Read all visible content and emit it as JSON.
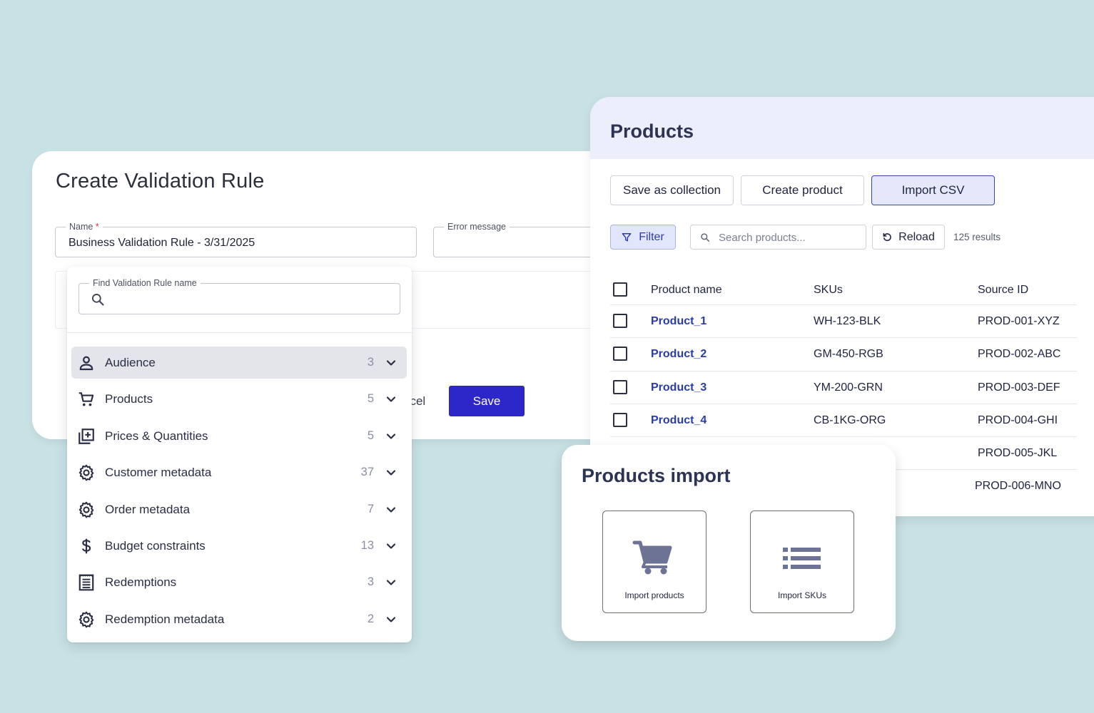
{
  "rule_form": {
    "title": "Create Validation Rule",
    "name_label": "Name",
    "name_required_mark": "*",
    "name_value": "Business Validation Rule - 3/31/2025",
    "error_label": "Error message",
    "cancel_label": "ncel",
    "save_label": "Save"
  },
  "dropdown": {
    "search_label": "Find Validation Rule name",
    "items": [
      {
        "label": "Audience",
        "count": "3",
        "icon": "person-icon",
        "active": true
      },
      {
        "label": "Products",
        "count": "5",
        "icon": "cart-icon",
        "active": false
      },
      {
        "label": "Prices & Quantities",
        "count": "5",
        "icon": "add-box-icon",
        "active": false
      },
      {
        "label": "Customer metadata",
        "count": "37",
        "icon": "gear-icon",
        "active": false
      },
      {
        "label": "Order metadata",
        "count": "7",
        "icon": "gear-icon",
        "active": false
      },
      {
        "label": "Budget constraints",
        "count": "13",
        "icon": "dollar-icon",
        "active": false
      },
      {
        "label": "Redemptions",
        "count": "3",
        "icon": "receipt-icon",
        "active": false
      },
      {
        "label": "Redemption metadata",
        "count": "2",
        "icon": "gear-icon",
        "active": false
      }
    ]
  },
  "products": {
    "title": "Products",
    "buttons": {
      "save_collection": "Save as collection",
      "create_product": "Create product",
      "import_csv": "Import CSV"
    },
    "filter_label": "Filter",
    "search_placeholder": "Search products...",
    "reload_label": "Reload",
    "results_text": "125 results",
    "columns": {
      "name": "Product name",
      "sku": "SKUs",
      "source": "Source ID"
    },
    "rows": [
      {
        "name": "Product_1",
        "sku": "WH-123-BLK",
        "source": "PROD-001-XYZ"
      },
      {
        "name": "Product_2",
        "sku": "GM-450-RGB",
        "source": "PROD-002-ABC"
      },
      {
        "name": "Product_3",
        "sku": "YM-200-GRN",
        "source": "PROD-003-DEF"
      },
      {
        "name": "Product_4",
        "sku": "CB-1KG-ORG",
        "source": "PROD-004-GHI"
      },
      {
        "name": "",
        "sku": "",
        "source": "PROD-005-JKL"
      },
      {
        "name": "",
        "sku": "",
        "source": "PROD-006-MNO"
      }
    ]
  },
  "import": {
    "title": "Products import",
    "tiles": [
      {
        "label": "Import products",
        "icon": "cart-icon"
      },
      {
        "label": "Import SKUs",
        "icon": "list-icon"
      }
    ]
  },
  "colors": {
    "background": "#c8e1e5",
    "primary": "#2d27c9",
    "link": "#2a3ca8",
    "icon_muted": "#6d7394"
  }
}
